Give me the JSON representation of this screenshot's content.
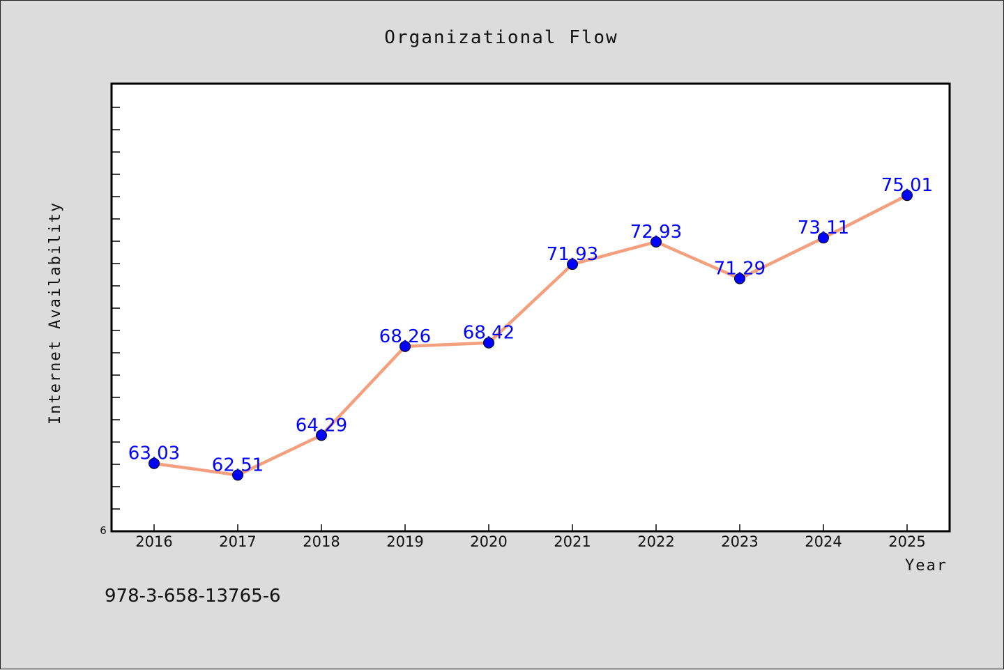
{
  "chart_data": {
    "type": "line",
    "title": "Organizational Flow",
    "xlabel": "Year",
    "ylabel": "Internet Availability",
    "categories": [
      "2016",
      "2017",
      "2018",
      "2019",
      "2020",
      "2021",
      "2022",
      "2023",
      "2024",
      "2025"
    ],
    "series": [
      {
        "values": [
          63.03,
          62.51,
          64.29,
          68.26,
          68.42,
          71.93,
          72.93,
          71.29,
          73.11,
          75.01
        ],
        "line_color": "#f4a07e",
        "marker_color": "#0000ff"
      }
    ],
    "data_labels": [
      "63.03",
      "62.51",
      "64.29",
      "68.26",
      "68.42",
      "71.93",
      "72.93",
      "71.29",
      "73.11",
      "75.01"
    ],
    "y_min_label": "6",
    "ylim": [
      60,
      80
    ],
    "grid": false,
    "background": "#ffffff"
  },
  "annotation": "978-3-658-13765-6"
}
